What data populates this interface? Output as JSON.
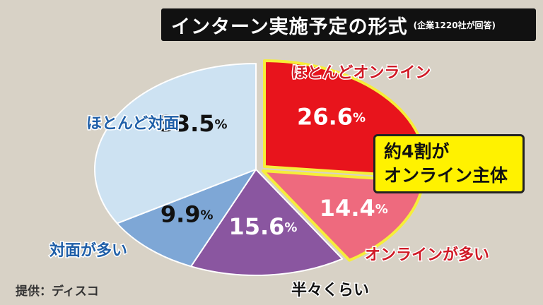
{
  "header": {
    "title": "インターン実施予定の形式",
    "subtitle": "(企業1220社が回答)"
  },
  "callout": {
    "line1": "約4割が",
    "line2": "オンライン主体"
  },
  "source": "提供：ディスコ",
  "chart_data": {
    "type": "pie",
    "title": "インターン実施予定の形式",
    "subtitle": "(企業1220社が回答)",
    "unit": "%",
    "slices": [
      {
        "label": "ほとんどオンライン",
        "value": 26.6,
        "display": "26.6",
        "color": "#e8141c",
        "label_color": "#d01a26"
      },
      {
        "label": "オンラインが多い",
        "value": 14.4,
        "display": "14.4",
        "color": "#ee6a7e",
        "label_color": "#d01a26"
      },
      {
        "label": "半々くらい",
        "value": 15.6,
        "display": "15.6",
        "color": "#8a56a0",
        "label_color": "#111111"
      },
      {
        "label": "対面が多い",
        "value": 9.9,
        "display": "9.9",
        "color": "#7ea7d6",
        "label_color": "#1f5fa8"
      },
      {
        "label": "ほとんど対面",
        "value": 33.5,
        "display": "33.5",
        "color": "#cde2f2",
        "label_color": "#1f5fa8"
      }
    ]
  }
}
